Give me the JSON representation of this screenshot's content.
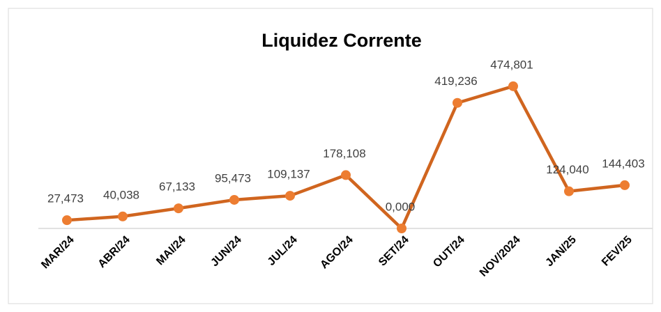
{
  "chart_data": {
    "type": "line",
    "title": "Liquidez Corrente",
    "categories": [
      "MAR/24",
      "ABR/24",
      "MAI/24",
      "JUN/24",
      "JUL/24",
      "AGO/24",
      "SET/24",
      "OUT/24",
      "NOV/2024",
      "JAN/25",
      "FEV/25"
    ],
    "series": [
      {
        "name": "Liquidez Corrente",
        "color": "#d0651f",
        "marker_color": "#ed7d31",
        "values": [
          27.473,
          40.038,
          67.133,
          95.473,
          109.137,
          178.108,
          0.0,
          419.236,
          474.801,
          124.04,
          144.403
        ],
        "value_labels": [
          "27,473",
          "40,038",
          "67,133",
          "95,473",
          "109,137",
          "178,108",
          "0,000",
          "419,236",
          "474,801",
          "124,040",
          "144,403"
        ]
      }
    ],
    "ylim": [
      0,
      500
    ]
  }
}
